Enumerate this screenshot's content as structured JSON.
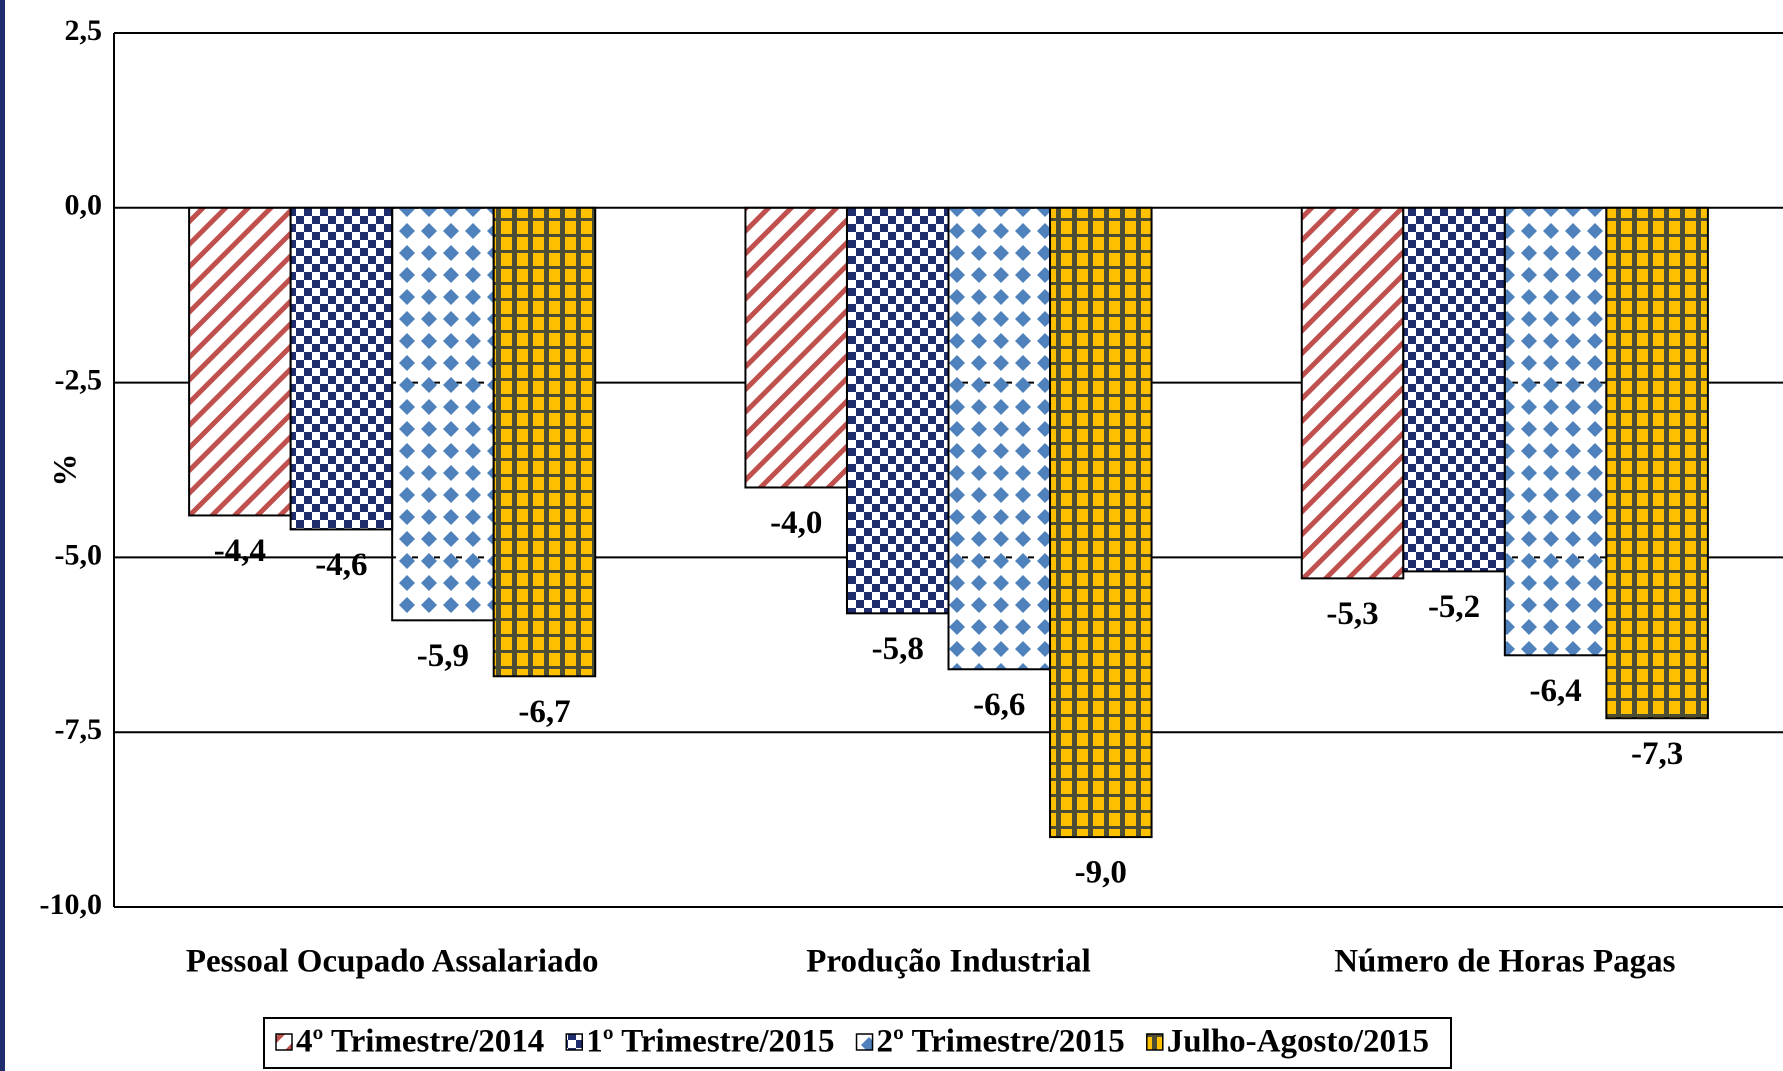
{
  "chart_data": {
    "type": "bar",
    "y_label": "%",
    "categories": [
      "Pessoal Ocupado Assalariado",
      "Produção Industrial",
      "Número de Horas Pagas"
    ],
    "series": [
      {
        "name": "4º Trimestre/2014",
        "color": "#c0504d",
        "values": [
          -4.4,
          -4.0,
          -5.3
        ],
        "value_labels": [
          "-4,4",
          "-4,0",
          "-5,3"
        ]
      },
      {
        "name": "1º Trimestre/2015",
        "color": "#1f2d6e",
        "values": [
          -4.6,
          -5.8,
          -5.2
        ],
        "value_labels": [
          "-4,6",
          "-5,8",
          "-5,2"
        ]
      },
      {
        "name": "2º Trimestre/2015",
        "color": "#4f81bd",
        "values": [
          -5.9,
          -6.6,
          -6.4
        ],
        "value_labels": [
          "-5,9",
          "-6,6",
          "-6,4"
        ]
      },
      {
        "name": "Julho-Agosto/2015",
        "color": "#ffc000",
        "values": [
          -6.7,
          -9.0,
          -7.3
        ],
        "value_labels": [
          "-6,7",
          "-9,0",
          "-7,3"
        ]
      }
    ],
    "ylim": [
      -10,
      2.5
    ],
    "yticks": [
      {
        "value": -10,
        "label": "-10,0"
      },
      {
        "value": -7.5,
        "label": "-7,5"
      },
      {
        "value": -5,
        "label": "-5,0"
      },
      {
        "value": -2.5,
        "label": "-2,5"
      },
      {
        "value": 0,
        "label": "0,0"
      },
      {
        "value": 2.5,
        "label": "2,5"
      }
    ],
    "grid": true,
    "legend": "bottom"
  }
}
